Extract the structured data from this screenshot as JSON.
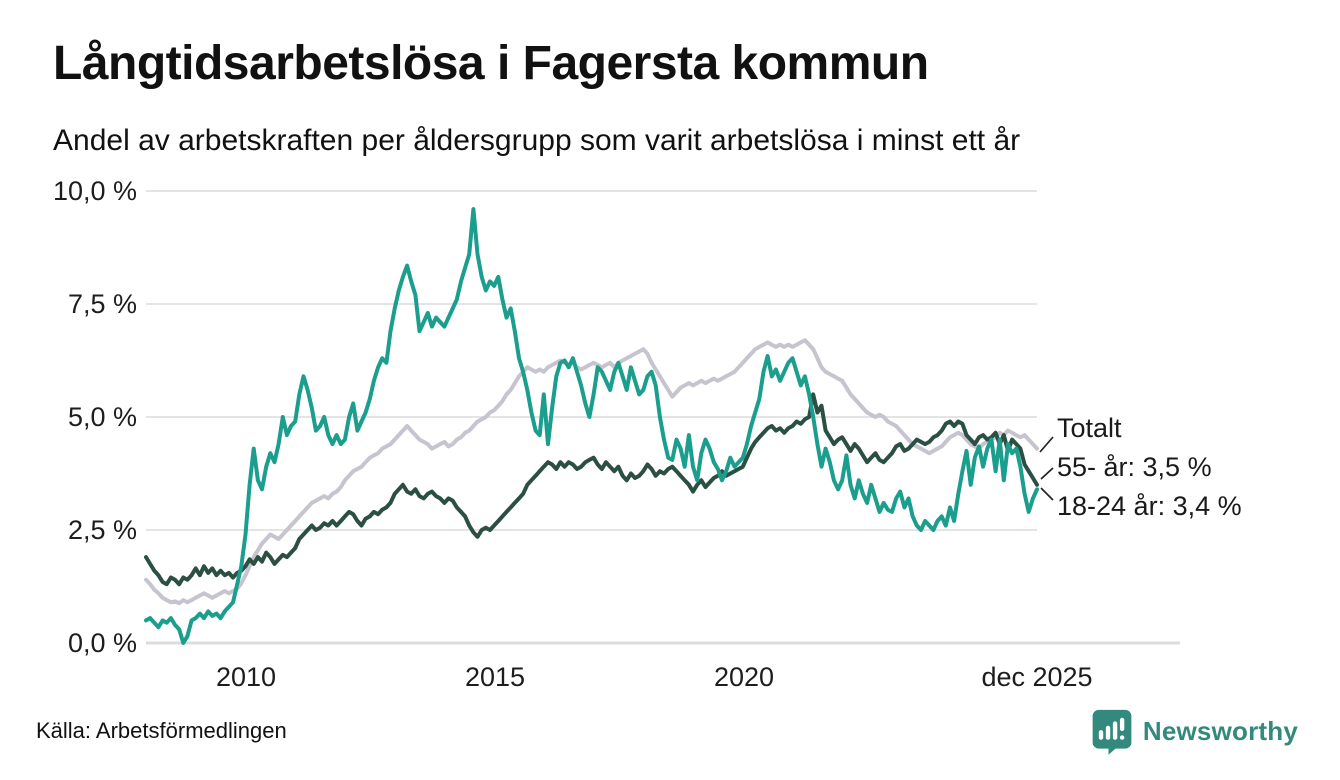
{
  "header": {
    "title": "Långtidsarbetslösa i Fagersta kommun",
    "subtitle": "Andel av arbetskraften per åldersgrupp som varit arbetslösa i minst ett år"
  },
  "chart_data": {
    "type": "line",
    "title": "Långtidsarbetslösa i Fagersta kommun",
    "subtitle": "Andel av arbetskraften per åldersgrupp som varit arbetslösa i minst ett år",
    "x_unit": "month",
    "x_start": "2008-01",
    "x_end": "2025-12",
    "ylim": [
      0,
      10
    ],
    "grid": "horizontal",
    "y_tick_values": [
      10,
      7.5,
      5,
      2.5,
      0
    ],
    "y_ticks": [
      "10,0 %",
      "7,5 %",
      "5,0 %",
      "2,5 %",
      "0,0 %"
    ],
    "x_tick_labels": [
      "2010",
      "2015",
      "2020",
      "dec 2025"
    ],
    "legend_position": "end-of-line-labels",
    "series": [
      {
        "name": "Totalt",
        "end_label": "Totalt",
        "color": "#c6c4cf",
        "values": [
          1.4,
          1.3,
          1.18,
          1.1,
          1.0,
          0.95,
          0.9,
          0.92,
          0.88,
          0.95,
          0.9,
          0.95,
          1.0,
          1.05,
          1.1,
          1.05,
          1.0,
          1.05,
          1.1,
          1.15,
          1.1,
          1.15,
          1.2,
          1.32,
          1.5,
          1.7,
          1.9,
          2.05,
          2.2,
          2.3,
          2.4,
          2.35,
          2.3,
          2.4,
          2.5,
          2.6,
          2.7,
          2.8,
          2.9,
          3.0,
          3.1,
          3.15,
          3.2,
          3.25,
          3.2,
          3.3,
          3.35,
          3.45,
          3.6,
          3.7,
          3.8,
          3.85,
          3.9,
          4.0,
          4.1,
          4.15,
          4.2,
          4.3,
          4.35,
          4.4,
          4.5,
          4.6,
          4.7,
          4.8,
          4.7,
          4.6,
          4.5,
          4.45,
          4.4,
          4.3,
          4.35,
          4.4,
          4.45,
          4.35,
          4.4,
          4.5,
          4.55,
          4.65,
          4.7,
          4.8,
          4.9,
          4.95,
          5.0,
          5.1,
          5.15,
          5.25,
          5.35,
          5.5,
          5.6,
          5.75,
          5.9,
          6.0,
          6.1,
          6.05,
          6.0,
          6.05,
          6.0,
          6.1,
          6.15,
          6.2,
          6.25,
          6.2,
          6.15,
          6.2,
          6.1,
          6.05,
          6.1,
          6.15,
          6.2,
          6.15,
          6.1,
          6.15,
          6.2,
          6.1,
          6.2,
          6.25,
          6.3,
          6.35,
          6.4,
          6.45,
          6.5,
          6.4,
          6.2,
          6.05,
          5.9,
          5.75,
          5.6,
          5.45,
          5.55,
          5.65,
          5.7,
          5.75,
          5.7,
          5.75,
          5.8,
          5.75,
          5.8,
          5.85,
          5.8,
          5.85,
          5.9,
          5.95,
          6.0,
          6.1,
          6.2,
          6.3,
          6.4,
          6.5,
          6.55,
          6.6,
          6.65,
          6.6,
          6.55,
          6.6,
          6.55,
          6.6,
          6.55,
          6.6,
          6.65,
          6.7,
          6.6,
          6.5,
          6.3,
          6.1,
          6.0,
          5.95,
          5.9,
          5.85,
          5.8,
          5.65,
          5.5,
          5.4,
          5.3,
          5.2,
          5.1,
          5.05,
          5.0,
          5.05,
          5.0,
          4.9,
          4.85,
          4.8,
          4.7,
          4.6,
          4.5,
          4.4,
          4.35,
          4.3,
          4.25,
          4.2,
          4.25,
          4.3,
          4.35,
          4.45,
          4.55,
          4.6,
          4.65,
          4.6,
          4.5,
          4.4,
          4.35,
          4.3,
          4.4,
          4.45,
          4.5,
          4.55,
          4.65,
          4.6,
          4.7,
          4.65,
          4.6,
          4.55,
          4.6,
          4.5,
          4.4,
          4.3
        ]
      },
      {
        "name": "55- år",
        "end_label": "55- år: 3,5 %",
        "end_value": "3,5 %",
        "color": "#2c4f44",
        "values": [
          1.9,
          1.75,
          1.6,
          1.5,
          1.35,
          1.3,
          1.45,
          1.4,
          1.3,
          1.45,
          1.4,
          1.5,
          1.65,
          1.5,
          1.7,
          1.55,
          1.65,
          1.5,
          1.6,
          1.5,
          1.55,
          1.45,
          1.55,
          1.6,
          1.7,
          1.85,
          1.75,
          1.9,
          1.8,
          2.0,
          1.9,
          1.75,
          1.85,
          1.95,
          1.9,
          2.0,
          2.1,
          2.3,
          2.4,
          2.5,
          2.6,
          2.5,
          2.55,
          2.65,
          2.6,
          2.7,
          2.6,
          2.7,
          2.8,
          2.9,
          2.85,
          2.7,
          2.6,
          2.75,
          2.8,
          2.9,
          2.85,
          2.95,
          3.0,
          3.1,
          3.3,
          3.4,
          3.5,
          3.35,
          3.3,
          3.4,
          3.25,
          3.2,
          3.3,
          3.35,
          3.25,
          3.2,
          3.1,
          3.2,
          3.15,
          3.0,
          2.9,
          2.8,
          2.6,
          2.45,
          2.35,
          2.5,
          2.55,
          2.5,
          2.6,
          2.7,
          2.8,
          2.9,
          3.0,
          3.1,
          3.2,
          3.3,
          3.5,
          3.6,
          3.7,
          3.8,
          3.9,
          4.0,
          3.95,
          3.85,
          4.0,
          3.9,
          4.0,
          3.95,
          3.85,
          3.9,
          4.0,
          4.05,
          4.1,
          3.95,
          3.85,
          4.0,
          3.9,
          3.8,
          3.9,
          3.7,
          3.6,
          3.75,
          3.65,
          3.7,
          3.8,
          3.95,
          3.85,
          3.7,
          3.8,
          3.75,
          3.85,
          3.9,
          3.8,
          3.7,
          3.6,
          3.5,
          3.35,
          3.5,
          3.6,
          3.45,
          3.55,
          3.65,
          3.7,
          3.8,
          3.7,
          3.75,
          3.8,
          3.85,
          3.9,
          4.1,
          4.3,
          4.45,
          4.55,
          4.65,
          4.75,
          4.8,
          4.7,
          4.75,
          4.65,
          4.75,
          4.8,
          4.9,
          4.85,
          4.95,
          5.0,
          5.5,
          5.1,
          5.25,
          4.7,
          4.55,
          4.4,
          4.5,
          4.55,
          4.4,
          4.25,
          4.4,
          4.3,
          4.15,
          4.0,
          4.1,
          4.2,
          4.05,
          4.0,
          4.1,
          4.2,
          4.35,
          4.4,
          4.25,
          4.3,
          4.4,
          4.5,
          4.45,
          4.4,
          4.45,
          4.55,
          4.6,
          4.7,
          4.85,
          4.9,
          4.8,
          4.9,
          4.85,
          4.6,
          4.5,
          4.4,
          4.55,
          4.6,
          4.5,
          4.55,
          4.65,
          4.4,
          4.6,
          4.25,
          4.5,
          4.4,
          4.3,
          3.95,
          3.8,
          3.65,
          3.5
        ]
      },
      {
        "name": "18-24 år",
        "end_label": "18-24 år: 3,4 %",
        "end_value": "3,4 %",
        "color": "#1b9e8d",
        "values": [
          0.5,
          0.55,
          0.45,
          0.35,
          0.5,
          0.45,
          0.55,
          0.4,
          0.3,
          0.0,
          0.15,
          0.5,
          0.55,
          0.65,
          0.55,
          0.7,
          0.6,
          0.65,
          0.55,
          0.7,
          0.8,
          0.9,
          1.3,
          1.7,
          2.4,
          3.5,
          4.3,
          3.6,
          3.4,
          3.9,
          4.2,
          4.0,
          4.4,
          5.0,
          4.6,
          4.8,
          4.9,
          5.5,
          5.9,
          5.6,
          5.2,
          4.7,
          4.8,
          5.0,
          4.6,
          4.4,
          4.6,
          4.4,
          4.5,
          5.0,
          5.3,
          4.7,
          4.9,
          5.1,
          5.4,
          5.8,
          6.1,
          6.3,
          6.2,
          6.9,
          7.4,
          7.8,
          8.1,
          8.35,
          8.0,
          7.7,
          6.9,
          7.1,
          7.3,
          7.0,
          7.2,
          7.1,
          7.0,
          7.2,
          7.4,
          7.6,
          8.0,
          8.3,
          8.6,
          9.6,
          8.6,
          8.1,
          7.8,
          8.0,
          7.9,
          8.1,
          7.6,
          7.2,
          7.4,
          6.9,
          6.3,
          6.0,
          5.6,
          5.1,
          4.7,
          4.6,
          5.5,
          4.4,
          5.2,
          5.9,
          6.2,
          6.25,
          6.1,
          6.3,
          6.0,
          5.7,
          5.3,
          5.0,
          5.5,
          6.1,
          6.0,
          5.8,
          5.6,
          6.0,
          6.2,
          5.9,
          5.6,
          6.1,
          5.8,
          5.5,
          5.6,
          5.9,
          6.0,
          5.7,
          5.0,
          4.5,
          4.1,
          4.05,
          4.5,
          4.3,
          3.9,
          4.6,
          3.9,
          3.6,
          4.2,
          4.5,
          4.3,
          4.0,
          3.85,
          3.6,
          3.8,
          4.1,
          3.9,
          4.0,
          4.1,
          4.4,
          4.8,
          5.1,
          5.4,
          6.0,
          6.35,
          5.9,
          6.05,
          5.8,
          6.0,
          6.2,
          6.3,
          6.0,
          5.7,
          5.9,
          5.5,
          5.0,
          4.4,
          3.9,
          4.3,
          4.0,
          3.6,
          3.4,
          3.6,
          4.15,
          3.5,
          3.2,
          3.6,
          3.3,
          3.1,
          3.5,
          3.2,
          2.9,
          3.1,
          2.95,
          2.9,
          3.2,
          3.35,
          3.0,
          3.2,
          2.8,
          2.6,
          2.5,
          2.7,
          2.6,
          2.5,
          2.7,
          2.8,
          2.6,
          3.0,
          2.7,
          3.3,
          3.8,
          4.25,
          3.5,
          4.1,
          4.35,
          3.9,
          4.3,
          4.5,
          3.8,
          4.5,
          3.6,
          4.4,
          4.2,
          4.3,
          3.9,
          3.3,
          2.9,
          3.2,
          3.4
        ]
      }
    ]
  },
  "footer": {
    "source": "Källa: Arbetsförmedlingen",
    "brand": "Newsworthy"
  },
  "colors": {
    "totalt": "#c6c4cf",
    "age_55_plus": "#2c4f44",
    "age_18_24": "#1b9e8d",
    "brand_teal": "#338a7c",
    "gridline": "#e4e3e6"
  }
}
